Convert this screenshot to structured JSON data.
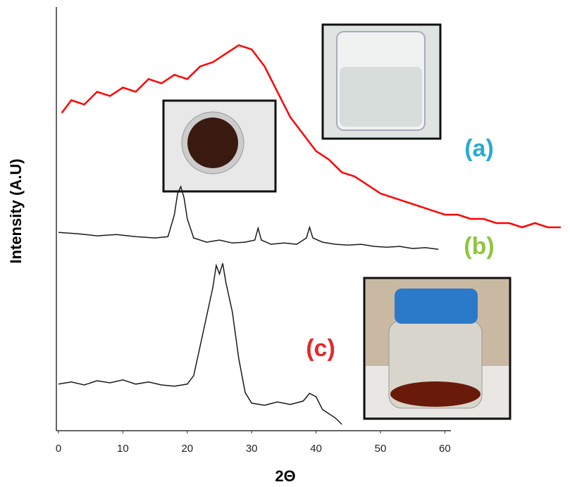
{
  "chart_data": {
    "type": "line",
    "x_label": "2Θ",
    "y_label": "Intensity (A.U)",
    "xlim": [
      0,
      79
    ],
    "ylim": [
      0,
      100
    ],
    "xticks": [
      0,
      10,
      20,
      30,
      40,
      50,
      60
    ],
    "series": [
      {
        "name": "(a)",
        "color": "#ff0000",
        "label_color": "#29a9d6",
        "x": [
          0.5,
          2,
          4,
          6,
          8,
          10,
          12,
          14,
          16,
          18,
          20,
          22,
          24,
          26,
          28,
          30,
          32,
          34,
          36,
          38,
          40,
          42,
          44,
          46,
          48,
          50,
          52,
          54,
          56,
          58,
          60,
          62,
          64,
          66,
          68,
          70,
          72,
          74,
          76,
          78
        ],
        "values": [
          75,
          78,
          77,
          80,
          79,
          81,
          80,
          83,
          82,
          84,
          83,
          86,
          87,
          89,
          91,
          90,
          86,
          80,
          74,
          70,
          66,
          64,
          61,
          60,
          58,
          56,
          55,
          54,
          53,
          52,
          51,
          51,
          50,
          50,
          49,
          49,
          48,
          49,
          48,
          48
        ]
      },
      {
        "name": "(b)",
        "color": "#1a1a1a",
        "label_color": "#8dc63f",
        "x": [
          0,
          3,
          6,
          9,
          12,
          15,
          17,
          18,
          18.5,
          19,
          19.5,
          20,
          21,
          23,
          25,
          27,
          29,
          30.5,
          31,
          31.5,
          33,
          35,
          37,
          38.5,
          39,
          39.5,
          41,
          43,
          45,
          47,
          49,
          51,
          53,
          55,
          57,
          59
        ],
        "values": [
          46.8,
          46.5,
          46,
          46.3,
          45.8,
          45.5,
          45.8,
          51,
          56,
          57.6,
          55,
          50,
          45.5,
          44.5,
          45,
          44.3,
          44.5,
          45,
          47.8,
          45,
          44,
          44.3,
          44,
          45.5,
          48,
          45.5,
          44.5,
          44,
          43.8,
          44,
          43.5,
          43.3,
          43.5,
          43,
          43.2,
          42.8
        ]
      },
      {
        "name": "(c)",
        "color": "#1a1a1a",
        "label_color": "#e8262a",
        "x": [
          0,
          2,
          4,
          6,
          8,
          10,
          12,
          14,
          16,
          18,
          20,
          21,
          22,
          23,
          24,
          24.5,
          25,
          25.5,
          26,
          27,
          28,
          29,
          30,
          32,
          34,
          36,
          38,
          39,
          40,
          41,
          42,
          43,
          44
        ],
        "values": [
          11,
          11.5,
          10.8,
          11.8,
          11.3,
          12,
          11,
          11.5,
          10.8,
          10.5,
          11,
          13,
          20,
          27,
          34,
          39,
          37,
          39.5,
          35,
          28,
          17,
          9,
          6.5,
          6,
          6.8,
          6.2,
          7,
          8.8,
          8,
          5,
          4,
          3,
          1.5
        ]
      }
    ]
  }
}
